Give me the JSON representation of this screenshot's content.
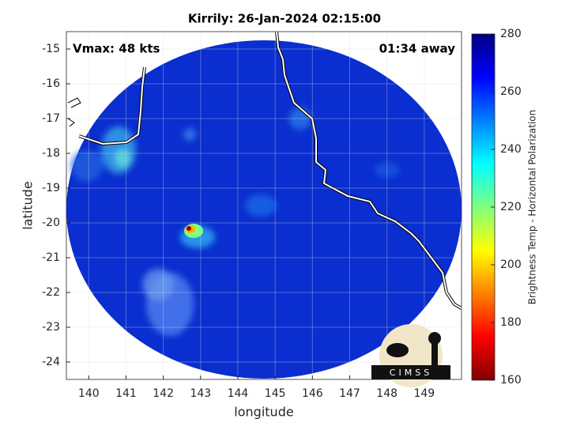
{
  "chart_data": {
    "type": "image-map",
    "title": "Kirrily: 26-Jan-2024 02:15:00",
    "annotations": [
      "Vmax: 48 kts",
      "01:34 away"
    ],
    "xlabel": "longitude",
    "ylabel": "latitude",
    "xlim": [
      139.4,
      150
    ],
    "xticks": [
      140,
      141,
      142,
      143,
      144,
      145,
      146,
      147,
      148,
      149
    ],
    "ylim": [
      -24.5,
      -14.5
    ],
    "yticks": [
      -15,
      -16,
      -17,
      -18,
      -19,
      -20,
      -21,
      -22,
      -23,
      -24
    ],
    "grid": true,
    "colorbar": {
      "label": "Brightness Temp - Horizontal Polarization",
      "lim": [
        160,
        280
      ],
      "ticks": [
        160,
        180,
        200,
        220,
        240,
        260,
        280
      ],
      "colormap": [
        "#800000",
        "#ff0000",
        "#ff8000",
        "#ffff00",
        "#80ff80",
        "#00ffff",
        "#0080ff",
        "#0000ff",
        "#000080"
      ]
    },
    "logo": "CIMSS"
  }
}
